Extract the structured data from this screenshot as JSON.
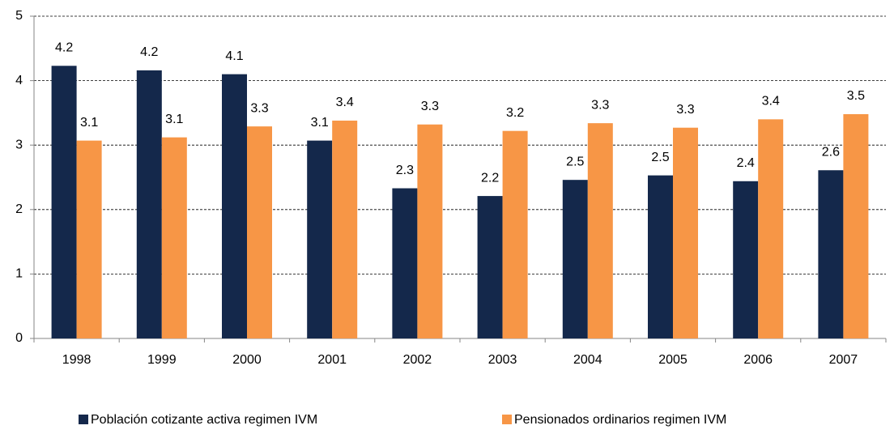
{
  "chart_data": {
    "type": "grouped-bar",
    "categories": [
      "1998",
      "1999",
      "2000",
      "2001",
      "2002",
      "2003",
      "2004",
      "2005",
      "2006",
      "2007"
    ],
    "series": [
      {
        "name": "Población cotizante activa regimen IVM",
        "color": "#14284b",
        "values": [
          4.23,
          4.16,
          4.1,
          3.07,
          2.33,
          2.21,
          2.46,
          2.53,
          2.44,
          2.61
        ],
        "value_labels": [
          "4.2",
          "4.2",
          "4.1",
          "3.1",
          "2.3",
          "2.2",
          "2.5",
          "2.5",
          "2.4",
          "2.6"
        ]
      },
      {
        "name": "Pensionados ordinarios regimen IVM",
        "color": "#f79646",
        "values": [
          3.07,
          3.12,
          3.29,
          3.38,
          3.32,
          3.22,
          3.34,
          3.27,
          3.4,
          3.48
        ],
        "value_labels": [
          "3.1",
          "3.1",
          "3.3",
          "3.4",
          "3.3",
          "3.2",
          "3.3",
          "3.3",
          "3.4",
          "3.5"
        ]
      }
    ],
    "ylim": [
      0,
      5
    ],
    "yticks": [
      0,
      1,
      2,
      3,
      4,
      5
    ],
    "grid": true,
    "legend": "bottom"
  }
}
